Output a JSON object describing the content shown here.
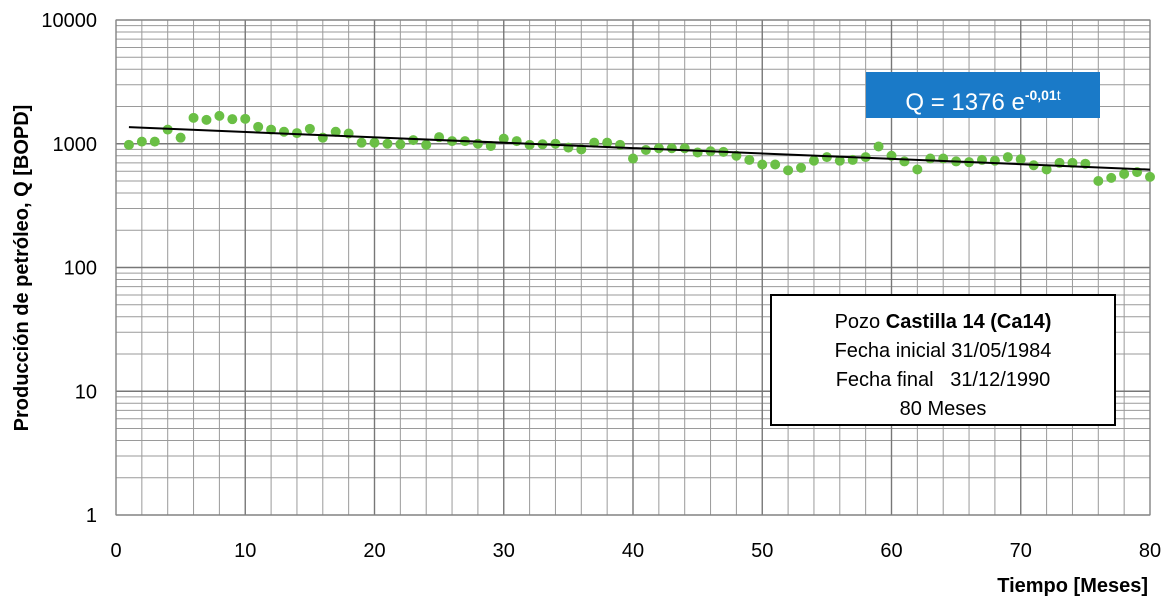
{
  "chart_data": {
    "type": "scatter",
    "xlabel": "Tiempo [Meses]",
    "ylabel": "Producción de petróleo, Q [BOPD]",
    "xlim": [
      0,
      80
    ],
    "ylim": [
      1,
      10000
    ],
    "yscale": "log",
    "grid": true,
    "x_ticks": [
      "0",
      "10",
      "20",
      "30",
      "40",
      "50",
      "60",
      "70",
      "80"
    ],
    "y_ticks": [
      "1",
      "10",
      "100",
      "1000",
      "10000"
    ],
    "marker_color": "#6abf45",
    "trend_color": "#000000",
    "trendline": {
      "a": 1376,
      "b": -0.01,
      "x_start": 1,
      "x_end": 80
    },
    "x": [
      1,
      2,
      3,
      4,
      5,
      6,
      7,
      8,
      9,
      10,
      11,
      12,
      13,
      14,
      15,
      16,
      17,
      18,
      19,
      20,
      21,
      22,
      23,
      24,
      25,
      26,
      27,
      28,
      29,
      30,
      31,
      32,
      33,
      34,
      35,
      36,
      37,
      38,
      39,
      40,
      41,
      42,
      43,
      44,
      45,
      46,
      47,
      48,
      49,
      50,
      51,
      52,
      53,
      54,
      55,
      56,
      57,
      58,
      59,
      60,
      61,
      62,
      63,
      64,
      65,
      66,
      67,
      68,
      69,
      70,
      71,
      72,
      73,
      74,
      75,
      76,
      77,
      78,
      79,
      80
    ],
    "y": [
      980,
      1040,
      1040,
      1300,
      1120,
      1620,
      1560,
      1680,
      1580,
      1590,
      1370,
      1300,
      1250,
      1220,
      1320,
      1120,
      1250,
      1210,
      1020,
      1020,
      1000,
      990,
      1070,
      980,
      1130,
      1050,
      1050,
      1000,
      960,
      1100,
      1050,
      980,
      990,
      1000,
      930,
      900,
      1020,
      1020,
      980,
      760,
      890,
      920,
      920,
      920,
      850,
      870,
      860,
      800,
      740,
      680,
      680,
      610,
      640,
      730,
      780,
      730,
      740,
      780,
      950,
      800,
      720,
      620,
      760,
      760,
      720,
      710,
      740,
      730,
      780,
      750,
      670,
      620,
      700,
      700,
      690,
      500,
      530,
      570,
      590,
      540
    ]
  },
  "equation": {
    "prefix": "Q = 1376 e",
    "exponent": "-0,01",
    "variable": "t"
  },
  "info": {
    "line1_prefix": "Pozo ",
    "line1_bold": "Castilla 14 (Ca14)",
    "line2": "Fecha inicial 31/05/1984",
    "line3": "Fecha final   31/12/1990",
    "line4": "80 Meses"
  }
}
